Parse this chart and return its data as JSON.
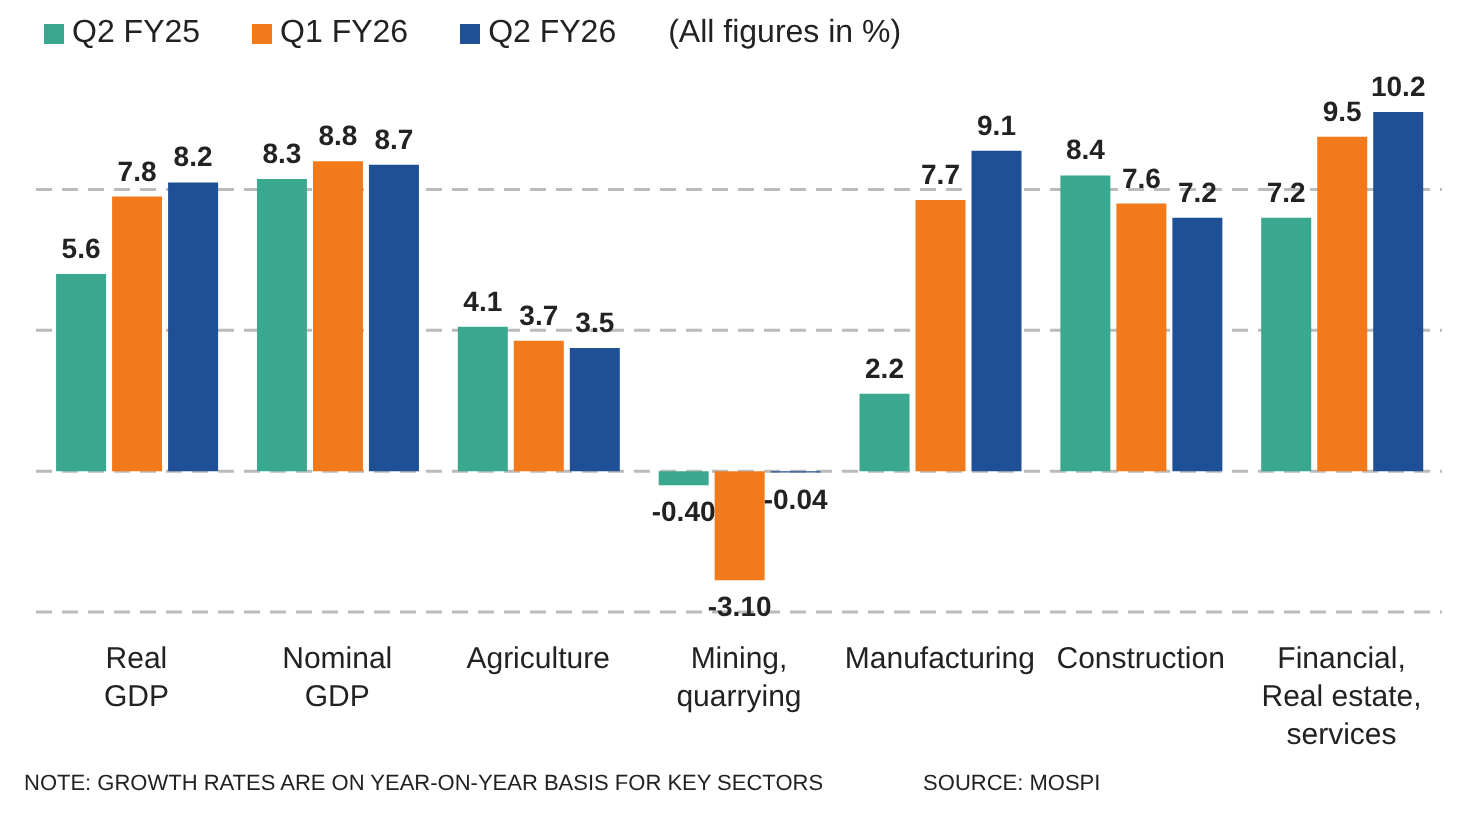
{
  "chart_data": {
    "type": "bar",
    "categories": [
      "Real\nGDP",
      "Nominal\nGDP",
      "Agriculture",
      "Mining,\nquarrying",
      "Manufacturing",
      "Construction",
      "Financial,\nReal estate,\nservices"
    ],
    "series": [
      {
        "name": "Q2 FY25",
        "color": "#3aa88e",
        "values": [
          5.6,
          8.3,
          4.1,
          -0.4,
          2.2,
          8.4,
          7.2
        ],
        "value_labels": [
          "5.6",
          "8.3",
          "4.1",
          "-0.40",
          "2.2",
          "8.4",
          "7.2"
        ]
      },
      {
        "name": "Q1 FY26",
        "color": "#f27a1a",
        "values": [
          7.8,
          8.8,
          3.7,
          -3.1,
          7.7,
          7.6,
          9.5
        ],
        "value_labels": [
          "7.8",
          "8.8",
          "3.7",
          "-3.10",
          "7.7",
          "7.6",
          "9.5"
        ]
      },
      {
        "name": "Q2 FY26",
        "color": "#1f4f94",
        "values": [
          8.2,
          8.7,
          3.5,
          -0.04,
          9.1,
          7.2,
          10.2
        ],
        "value_labels": [
          "8.2",
          "8.7",
          "3.5",
          "-0.04",
          "9.1",
          "7.2",
          "10.2"
        ]
      }
    ],
    "yticks": [
      {
        "value": -4,
        "label": null
      },
      {
        "value": 0,
        "label": null
      },
      {
        "value": 4,
        "label": null
      },
      {
        "value": 8,
        "label": null
      }
    ],
    "grid": "y",
    "legend": "top left",
    "tick_labels": "x",
    "annotations": [
      "(All figures in %)",
      "NOTE: GROWTH RATES ARE ON YEAR-ON-YEAR BASIS FOR KEY SECTORS",
      "SOURCE: MOSPI"
    ]
  }
}
